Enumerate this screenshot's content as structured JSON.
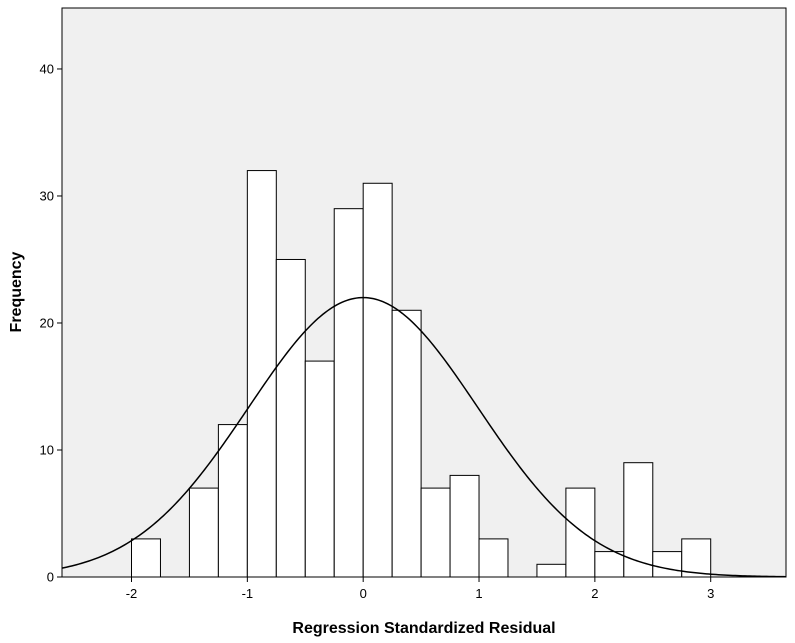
{
  "chart_data": {
    "type": "bar",
    "subtype": "histogram-with-normal-curve",
    "xlabel": "Regression Standardized Residual",
    "ylabel": "Frequency",
    "xlim": [
      -2.6,
      3.65
    ],
    "ylim": [
      0,
      44.8
    ],
    "xticks": [
      -2,
      -1,
      0,
      1,
      2,
      3
    ],
    "yticks": [
      0,
      10,
      20,
      30,
      40
    ],
    "bin_width": 0.25,
    "bins": [
      {
        "start": -2.0,
        "count": 3
      },
      {
        "start": -1.5,
        "count": 7
      },
      {
        "start": -1.25,
        "count": 12
      },
      {
        "start": -1.0,
        "count": 32
      },
      {
        "start": -0.75,
        "count": 25
      },
      {
        "start": -0.5,
        "count": 17
      },
      {
        "start": -0.25,
        "count": 29
      },
      {
        "start": 0.0,
        "count": 31
      },
      {
        "start": 0.25,
        "count": 21
      },
      {
        "start": 0.5,
        "count": 7
      },
      {
        "start": 0.75,
        "count": 8
      },
      {
        "start": 1.0,
        "count": 3
      },
      {
        "start": 1.5,
        "count": 1
      },
      {
        "start": 1.75,
        "count": 7
      },
      {
        "start": 2.0,
        "count": 2
      },
      {
        "start": 2.25,
        "count": 9
      },
      {
        "start": 2.5,
        "count": 2
      },
      {
        "start": 2.75,
        "count": 3
      }
    ],
    "normal_curve": {
      "mean": 0.0,
      "std": 0.99,
      "peak": 22.0
    },
    "grid": false,
    "background": "#f0f0f0",
    "bar_fill": "#ffffff",
    "line_color": "#000000"
  }
}
